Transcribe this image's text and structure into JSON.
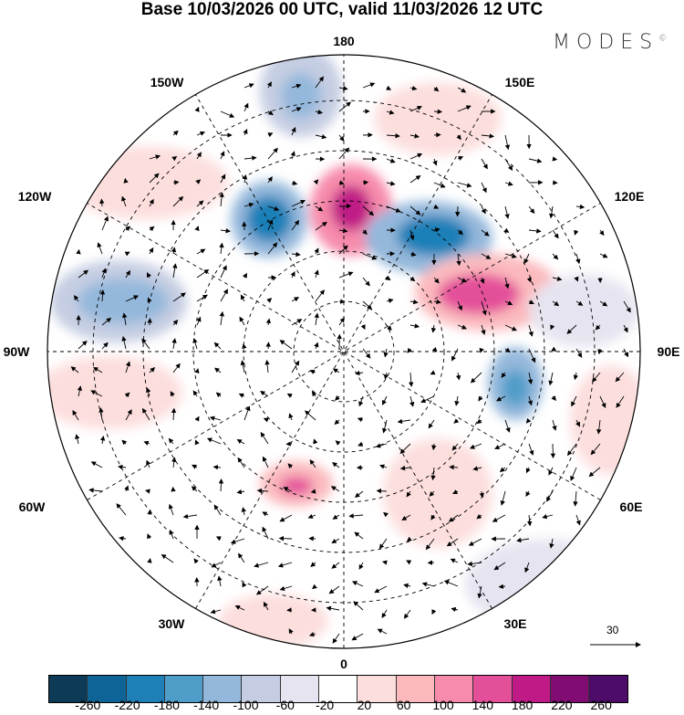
{
  "title": "Base 10/03/2026 00 UTC, valid 11/03/2026 12 UTC",
  "logo": {
    "text": "MODES",
    "mark": "©"
  },
  "meridian_labels": [
    "180",
    "150W",
    "150E",
    "120W",
    "120E",
    "90W",
    "90E",
    "60W",
    "60E",
    "30W",
    "30E",
    "0"
  ],
  "wind_scale": {
    "label": "30"
  },
  "colorbar": {
    "colors": [
      "#0d3b57",
      "#0f6497",
      "#1f80b8",
      "#4f9dc9",
      "#94b8db",
      "#c5cde2",
      "#e6e4f0",
      "#ffffff",
      "#fcdedd",
      "#fbb9bd",
      "#f78bab",
      "#e44f9a",
      "#c01a86",
      "#810d73",
      "#4d0b6a"
    ],
    "labels": [
      "-260",
      "-220",
      "-180",
      "-140",
      "-100",
      "-60",
      "-20",
      "20",
      "60",
      "100",
      "140",
      "180",
      "220",
      "260"
    ]
  }
}
